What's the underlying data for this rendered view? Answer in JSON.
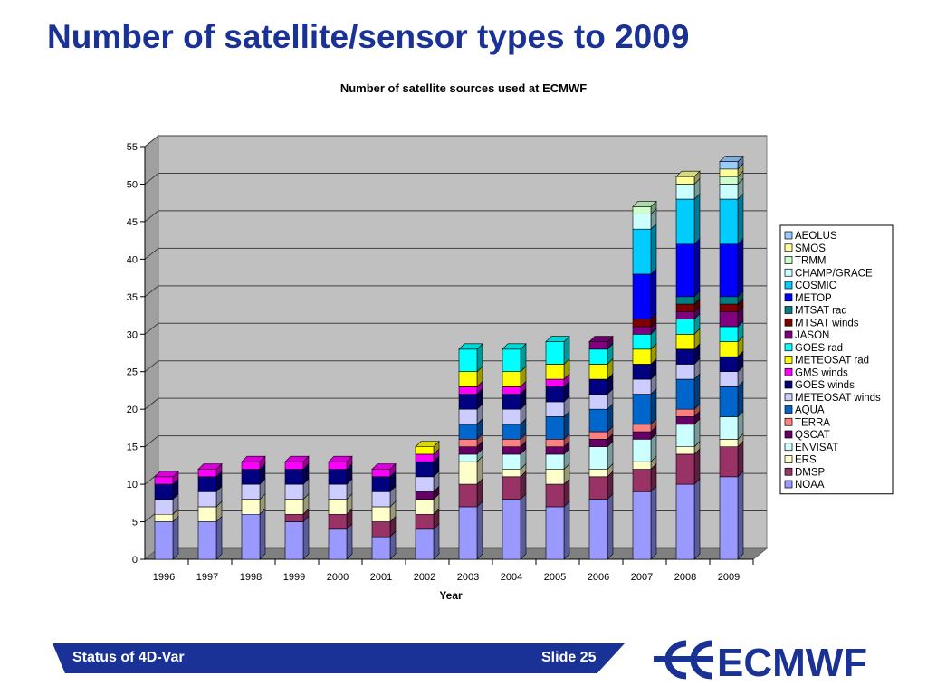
{
  "slide": {
    "title": "Number of satellite/sensor types to 2009",
    "footer_left": "Status of 4D-Var",
    "footer_right": "Slide 25",
    "logo_text": "ECMWF"
  },
  "colors": {
    "title": "#1a3296",
    "footer_band": "#1a3296",
    "plot_bg": "#c0c0c0"
  },
  "chart_data": {
    "type": "bar",
    "stacked": true,
    "three_d": true,
    "title": "Number of satellite sources used at ECMWF",
    "xlabel": "Year",
    "ylabel": "",
    "ylim": [
      0,
      55
    ],
    "yticks": [
      0,
      5,
      10,
      15,
      20,
      25,
      30,
      35,
      40,
      45,
      50,
      55
    ],
    "grid": true,
    "legend_position": "right",
    "categories": [
      "1996",
      "1997",
      "1998",
      "1999",
      "2000",
      "2001",
      "2002",
      "2003",
      "2004",
      "2005",
      "2006",
      "2007",
      "2008",
      "2009"
    ],
    "series": [
      {
        "name": "NOAA",
        "color": "#9999ff",
        "values": [
          5,
          5,
          6,
          5,
          4,
          3,
          4,
          7,
          8,
          7,
          8,
          9,
          10,
          11
        ]
      },
      {
        "name": "DMSP",
        "color": "#993366",
        "values": [
          0,
          0,
          0,
          1,
          2,
          2,
          2,
          3,
          3,
          3,
          3,
          3,
          4,
          4
        ]
      },
      {
        "name": "ERS",
        "color": "#ffffcc",
        "values": [
          1,
          2,
          2,
          2,
          2,
          2,
          2,
          3,
          1,
          2,
          1,
          1,
          1,
          1
        ]
      },
      {
        "name": "ENVISAT",
        "color": "#ccffff",
        "values": [
          0,
          0,
          0,
          0,
          0,
          0,
          0,
          1,
          2,
          2,
          3,
          3,
          3,
          3
        ]
      },
      {
        "name": "QSCAT",
        "color": "#660066",
        "values": [
          0,
          0,
          0,
          0,
          0,
          0,
          1,
          1,
          1,
          1,
          1,
          1,
          1,
          0
        ]
      },
      {
        "name": "TERRA",
        "color": "#ff8080",
        "values": [
          0,
          0,
          0,
          0,
          0,
          0,
          0,
          1,
          1,
          1,
          1,
          1,
          1,
          0
        ]
      },
      {
        "name": "AQUA",
        "color": "#0066cc",
        "values": [
          0,
          0,
          0,
          0,
          0,
          0,
          0,
          2,
          2,
          3,
          3,
          4,
          4,
          4
        ]
      },
      {
        "name": "METEOSAT winds",
        "color": "#ccccff",
        "values": [
          2,
          2,
          2,
          2,
          2,
          2,
          2,
          2,
          2,
          2,
          2,
          2,
          2,
          2
        ]
      },
      {
        "name": "GOES winds",
        "color": "#000080",
        "values": [
          2,
          2,
          2,
          2,
          2,
          2,
          2,
          2,
          2,
          2,
          2,
          2,
          2,
          2
        ]
      },
      {
        "name": "GMS winds",
        "color": "#ff00ff",
        "values": [
          1,
          1,
          1,
          1,
          1,
          1,
          1,
          1,
          1,
          1,
          0,
          0,
          0,
          0
        ]
      },
      {
        "name": "METEOSAT rad",
        "color": "#ffff00",
        "values": [
          0,
          0,
          0,
          0,
          0,
          0,
          1,
          2,
          2,
          2,
          2,
          2,
          2,
          2
        ]
      },
      {
        "name": "GOES rad",
        "color": "#00ffff",
        "values": [
          0,
          0,
          0,
          0,
          0,
          0,
          0,
          3,
          3,
          3,
          2,
          2,
          2,
          2
        ]
      },
      {
        "name": "JASON",
        "color": "#800080",
        "values": [
          0,
          0,
          0,
          0,
          0,
          0,
          0,
          0,
          0,
          0,
          1,
          1,
          1,
          2
        ]
      },
      {
        "name": "MTSAT winds",
        "color": "#800000",
        "values": [
          0,
          0,
          0,
          0,
          0,
          0,
          0,
          0,
          0,
          0,
          0,
          1,
          1,
          1
        ]
      },
      {
        "name": "MTSAT rad",
        "color": "#008080",
        "values": [
          0,
          0,
          0,
          0,
          0,
          0,
          0,
          0,
          0,
          0,
          0,
          0,
          1,
          1
        ]
      },
      {
        "name": "METOP",
        "color": "#0000ff",
        "values": [
          0,
          0,
          0,
          0,
          0,
          0,
          0,
          0,
          0,
          0,
          0,
          6,
          7,
          7
        ]
      },
      {
        "name": "COSMIC",
        "color": "#00ccff",
        "values": [
          0,
          0,
          0,
          0,
          0,
          0,
          0,
          0,
          0,
          0,
          0,
          6,
          6,
          6
        ]
      },
      {
        "name": "CHAMP/GRACE",
        "color": "#ccffff",
        "values": [
          0,
          0,
          0,
          0,
          0,
          0,
          0,
          0,
          0,
          0,
          0,
          2,
          2,
          2
        ]
      },
      {
        "name": "TRMM",
        "color": "#ccffcc",
        "values": [
          0,
          0,
          0,
          0,
          0,
          0,
          0,
          0,
          0,
          0,
          0,
          1,
          0,
          1
        ]
      },
      {
        "name": "SMOS",
        "color": "#ffff99",
        "values": [
          0,
          0,
          0,
          0,
          0,
          0,
          0,
          0,
          0,
          0,
          0,
          0,
          1,
          1
        ]
      },
      {
        "name": "AEOLUS",
        "color": "#99ccff",
        "values": [
          0,
          0,
          0,
          0,
          0,
          0,
          0,
          0,
          0,
          0,
          0,
          0,
          0,
          1
        ]
      }
    ]
  }
}
